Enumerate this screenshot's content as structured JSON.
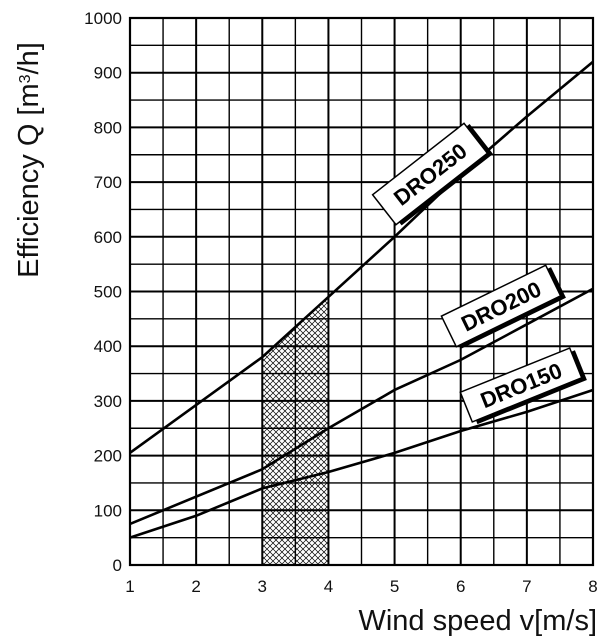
{
  "chart_data": {
    "type": "line",
    "xlabel": "Wind speed v[m/s]",
    "ylabel_main": "Efficiency Q [m",
    "ylabel_sup": "3",
    "ylabel_end": "/h]",
    "xlim": [
      1,
      8
    ],
    "ylim": [
      0,
      1000
    ],
    "x_ticks": [
      "1",
      "2",
      "3",
      "4",
      "5",
      "6",
      "7",
      "8"
    ],
    "y_ticks": [
      "0",
      "100",
      "200",
      "300",
      "400",
      "500",
      "600",
      "700",
      "800",
      "900",
      "1000"
    ],
    "grid": true,
    "shaded_region": {
      "x_from": 3,
      "x_to": 4,
      "pattern": "crosshatch"
    },
    "series": [
      {
        "name": "DRO250",
        "x": [
          1,
          3,
          4,
          5,
          6,
          7,
          8
        ],
        "values": [
          205,
          380,
          490,
          600,
          715,
          820,
          920
        ]
      },
      {
        "name": "DRO200",
        "x": [
          1,
          3,
          4,
          5,
          6,
          7,
          8
        ],
        "values": [
          75,
          175,
          250,
          320,
          375,
          440,
          505
        ]
      },
      {
        "name": "DRO150",
        "x": [
          1,
          2,
          3,
          4,
          5,
          6,
          7,
          8
        ],
        "values": [
          50,
          90,
          140,
          170,
          205,
          245,
          280,
          320
        ]
      }
    ],
    "colors": {
      "line": "#000000",
      "grid": "#000000",
      "label_box": "#ffffff"
    }
  }
}
